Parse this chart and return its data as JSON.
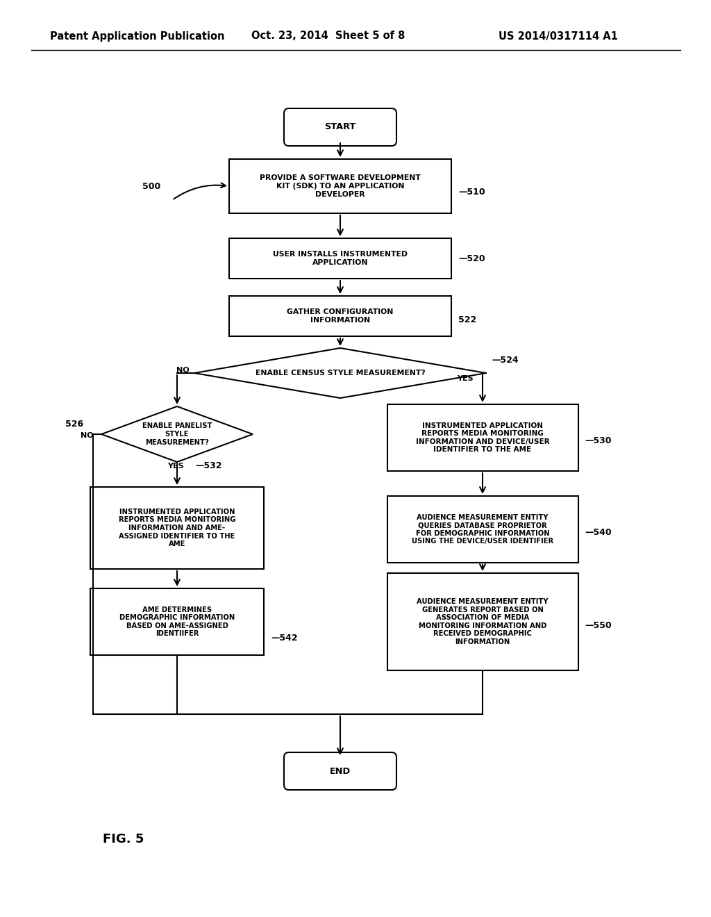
{
  "bg": "#ffffff",
  "header_left": "Patent Application Publication",
  "header_mid": "Oct. 23, 2014  Sheet 5 of 8",
  "header_right": "US 2014/0317114 A1",
  "fig_label": "FIG. 5",
  "diagram_label": "500",
  "nodes": {
    "start": {
      "text": "START"
    },
    "n510": {
      "text": "PROVIDE A SOFTWARE DEVELOPMENT\nKIT (SDK) TO AN APPLICATION\nDEVELOPER",
      "label": "—510"
    },
    "n520": {
      "text": "USER INSTALLS INSTRUMENTED\nAPPLICATION",
      "label": "—520"
    },
    "n522": {
      "text": "GATHER CONFIGURATION\nINFORMATION",
      "label": "522"
    },
    "n524": {
      "text": "ENABLE CENSUS STYLE MEASUREMENT?",
      "label": "—524"
    },
    "n526": {
      "text": "ENABLE PANELIST\nSTYLE\nMEASUREMENT?",
      "label": "526"
    },
    "n530": {
      "text": "INSTRUMENTED APPLICATION\nREPORTS MEDIA MONITORING\nINFORMATION AND DEVICE/USER\nIDENTIFIER TO THE AME",
      "label": "—530"
    },
    "n532": {
      "text": "INSTRUMENTED APPLICATION\nREPORTS MEDIA MONITORING\nINFORMATION AND AME-\nASSIGNED IDENTIFIER TO THE\nAME",
      "label": "—532"
    },
    "n540": {
      "text": "AUDIENCE MEASUREMENT ENTITY\nQUERIES DATABASE PROPRIETOR\nFOR DEMOGRAPHIC INFORMATION\nUSING THE DEVICE/USER IDENTIFIER",
      "label": "—540"
    },
    "n542": {
      "text": "AME DETERMINES\nDEMOGRAPHIC INFORMATION\nBASED ON AME-ASSIGNED\nIDENTIIFER",
      "label": "—542"
    },
    "n550": {
      "text": "AUDIENCE MEASUREMENT ENTITY\nGENERATES REPORT BASED ON\nASSOCIATION OF MEDIA\nMONITORING INFORMATION AND\nRECEIVED DEMOGRAPHIC\nINFORMATION",
      "label": "—550"
    },
    "end": {
      "text": "END"
    }
  }
}
